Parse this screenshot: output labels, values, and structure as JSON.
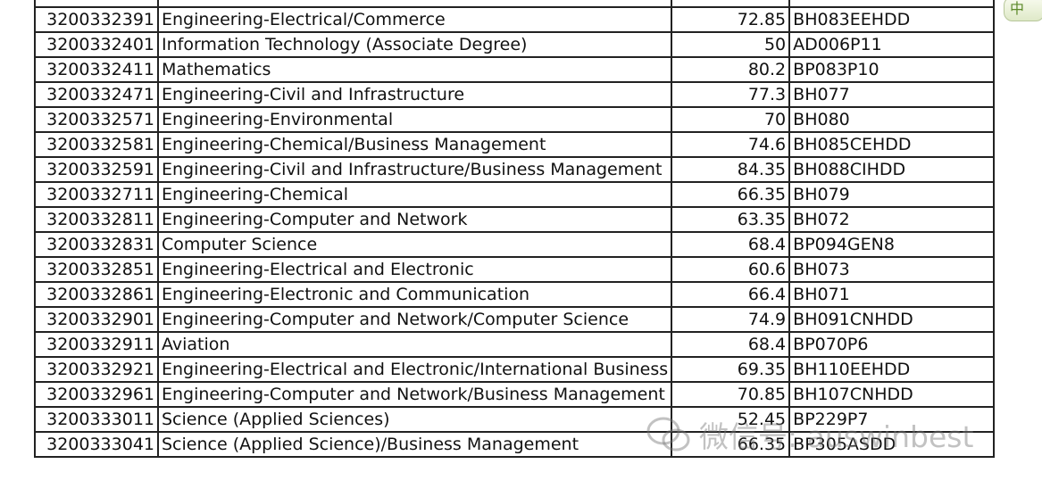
{
  "table": {
    "rows": [
      {
        "code": "",
        "name": "",
        "score": "",
        "ucas": ""
      },
      {
        "code": "3200332391",
        "name": "Engineering-Electrical/Commerce",
        "score": "72.85",
        "ucas": "BH083EEHDD"
      },
      {
        "code": "3200332401",
        "name": "Information Technology (Associate Degree)",
        "score": "50",
        "ucas": "AD006P11"
      },
      {
        "code": "3200332411",
        "name": "Mathematics",
        "score": "80.2",
        "ucas": "BP083P10"
      },
      {
        "code": "3200332471",
        "name": "Engineering-Civil and Infrastructure",
        "score": "77.3",
        "ucas": "BH077"
      },
      {
        "code": "3200332571",
        "name": "Engineering-Environmental",
        "score": "70",
        "ucas": "BH080"
      },
      {
        "code": "3200332581",
        "name": "Engineering-Chemical/Business Management",
        "score": "74.6",
        "ucas": "BH085CEHDD"
      },
      {
        "code": "3200332591",
        "name": "Engineering-Civil and Infrastructure/Business Management",
        "score": "84.35",
        "ucas": "BH088CIHDD"
      },
      {
        "code": "3200332711",
        "name": "Engineering-Chemical",
        "score": "66.35",
        "ucas": "BH079"
      },
      {
        "code": "3200332811",
        "name": "Engineering-Computer and Network",
        "score": "63.35",
        "ucas": "BH072"
      },
      {
        "code": "3200332831",
        "name": "Computer Science",
        "score": "68.4",
        "ucas": "BP094GEN8"
      },
      {
        "code": "3200332851",
        "name": "Engineering-Electrical and Electronic",
        "score": "60.6",
        "ucas": "BH073"
      },
      {
        "code": "3200332861",
        "name": "Engineering-Electronic and Communication",
        "score": "66.4",
        "ucas": "BH071"
      },
      {
        "code": "3200332901",
        "name": "Engineering-Computer and Network/Computer Science",
        "score": "74.9",
        "ucas": "BH091CNHDD"
      },
      {
        "code": "3200332911",
        "name": "Aviation",
        "score": "68.4",
        "ucas": "BP070P6"
      },
      {
        "code": "3200332921",
        "name": "Engineering-Electrical and Electronic/International Business",
        "score": "69.35",
        "ucas": "BH110EEHDD"
      },
      {
        "code": "3200332961",
        "name": "Engineering-Computer and Network/Business Management",
        "score": "70.85",
        "ucas": "BH107CNHDD"
      },
      {
        "code": "3200333011",
        "name": "Science (Applied Sciences)",
        "score": "52.45",
        "ucas": "BP229P7"
      },
      {
        "code": "3200333041",
        "name": "Science (Applied Science)/Business Management",
        "score": "66.35",
        "ucas": "BP305ASDD"
      }
    ]
  },
  "ime": {
    "label": "中"
  },
  "watermark": {
    "text": "微信号: auswinbest"
  },
  "colors": {
    "border": "#222222",
    "text": "#111111"
  }
}
